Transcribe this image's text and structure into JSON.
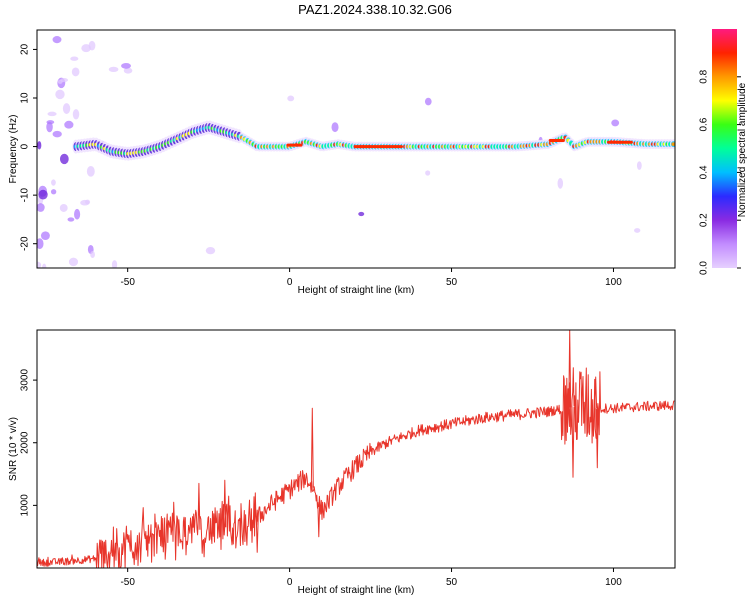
{
  "figure": {
    "title": "PAZ1.2024.338.10.32.G06"
  },
  "chart_data": [
    {
      "type": "heatmap",
      "xlabel": "Height of straight line (km)",
      "ylabel": "Frequency (Hz)",
      "xlim": [
        -78,
        119
      ],
      "ylim": [
        -25,
        24
      ],
      "xticks": [
        -50,
        0,
        50,
        100
      ],
      "yticks": [
        -20,
        -10,
        0,
        10,
        20
      ],
      "ridge": {
        "x": [
          -66,
          -60,
          -55,
          -50,
          -45,
          -40,
          -35,
          -30,
          -25,
          -20,
          -15,
          -10,
          -5,
          0,
          5,
          10,
          15,
          20,
          30,
          40,
          50,
          60,
          70,
          80,
          85,
          88,
          92,
          100,
          110,
          119
        ],
        "y": [
          0,
          0.5,
          -1,
          -1.5,
          -1,
          0,
          1.5,
          3,
          4,
          3,
          2,
          0,
          0,
          0,
          1,
          0,
          0.5,
          0,
          0,
          0,
          0,
          0,
          0,
          0.5,
          2,
          0,
          1,
          1,
          0.5,
          0.5
        ]
      },
      "colorbar": {
        "label": "Normalized spectral amplitude",
        "ticks": [
          0.0,
          0.2,
          0.4,
          0.6,
          0.8
        ],
        "range": [
          0,
          1
        ]
      },
      "colors": [
        "#ffffff",
        "#e6d0ff",
        "#c28cff",
        "#8a2be2",
        "#2b2bff",
        "#00bfff",
        "#00ff99",
        "#39ff14",
        "#ffff00",
        "#ff9900",
        "#ff2200",
        "#ff1a80"
      ]
    },
    {
      "type": "line",
      "xlabel": "Height of straight line (km)",
      "ylabel": "SNR (10 * v/v)",
      "xlim": [
        -78,
        119
      ],
      "ylim": [
        0,
        3800
      ],
      "xticks": [
        -50,
        0,
        50,
        100
      ],
      "yticks": [
        1000,
        2000,
        3000
      ],
      "line_color": "#e8352b",
      "trend": {
        "x": [
          -78,
          -70,
          -60,
          -55,
          -50,
          -40,
          -30,
          -20,
          -15,
          -10,
          -5,
          0,
          5,
          8,
          10,
          15,
          20,
          25,
          30,
          40,
          50,
          60,
          70,
          80,
          85,
          90,
          95,
          100,
          110,
          119
        ],
        "y": [
          80,
          100,
          150,
          250,
          350,
          500,
          600,
          650,
          700,
          800,
          1050,
          1250,
          1450,
          1200,
          900,
          1300,
          1600,
          1850,
          2000,
          2200,
          2300,
          2400,
          2450,
          2500,
          2550,
          2600,
          2550,
          2550,
          2580,
          2600
        ]
      },
      "spikes": [
        {
          "x": 7,
          "y": 2550
        },
        {
          "x": 9,
          "y": 500
        },
        {
          "x": 86.5,
          "y": 3800
        },
        {
          "x": 87.5,
          "y": 1450
        },
        {
          "x": 95,
          "y": 1600
        },
        {
          "x": 94.5,
          "y": 3050
        },
        {
          "x": -28,
          "y": 1350
        },
        {
          "x": -20,
          "y": 1400
        },
        {
          "x": -10,
          "y": 250
        }
      ]
    }
  ]
}
